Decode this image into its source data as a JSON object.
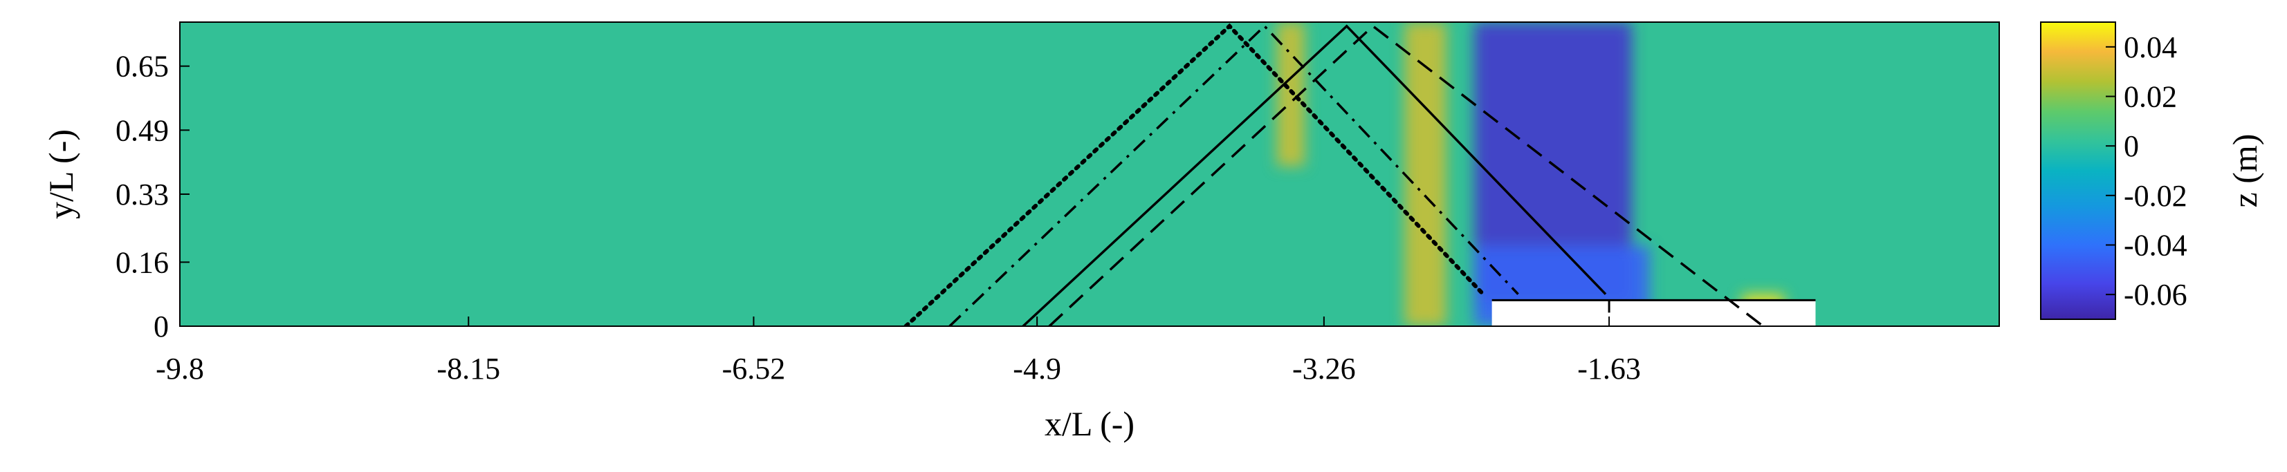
{
  "chart_data": {
    "type": "heatmap",
    "xlabel": "x/L (-)",
    "ylabel": "y/L (-)",
    "xlim": [
      -9.8,
      0.6
    ],
    "ylim": [
      0,
      0.76
    ],
    "xticks": [
      "-9.8",
      "-8.15",
      "-6.52",
      "-4.9",
      "-3.26",
      "-1.63"
    ],
    "xtick_values": [
      -9.8,
      -8.15,
      -6.52,
      -4.9,
      -3.26,
      -1.63
    ],
    "yticks": [
      "0",
      "0.16",
      "0.33",
      "0.49",
      "0.65"
    ],
    "ytick_values": [
      0,
      0.16,
      0.33,
      0.49,
      0.65
    ],
    "colorbar": {
      "label": "z (m)",
      "ticks": [
        "0.04",
        "0.02",
        "0",
        "-0.02",
        "-0.04",
        "-0.06"
      ],
      "tick_values": [
        0.04,
        0.02,
        0,
        -0.02,
        -0.04,
        -0.06
      ],
      "range": [
        -0.07,
        0.05
      ],
      "colormap": "parula"
    },
    "structure": {
      "x": [
        -2.3,
        -0.45
      ],
      "y": [
        0,
        0.065
      ],
      "center_x": -1.63
    },
    "wave_rays": [
      {
        "style": "dotted",
        "points": [
          [
            -5.65,
            0
          ],
          [
            -3.8,
            0.75
          ],
          [
            -2.35,
            0.08
          ]
        ]
      },
      {
        "style": "dashdot",
        "points": [
          [
            -5.4,
            0
          ],
          [
            -3.6,
            0.75
          ],
          [
            -2.15,
            0.08
          ]
        ]
      },
      {
        "style": "solid",
        "points": [
          [
            -4.98,
            0
          ],
          [
            -3.13,
            0.75
          ],
          [
            -1.65,
            0.08
          ]
        ]
      },
      {
        "style": "dashed",
        "points": [
          [
            -4.83,
            0
          ],
          [
            -2.98,
            0.75
          ],
          [
            -0.75,
            0
          ]
        ]
      }
    ],
    "field_features": [
      {
        "name": "trough",
        "x_center": -1.95,
        "x_halfwidth": 0.45,
        "y_min": 0.06,
        "y_max": 0.76,
        "z": -0.062
      },
      {
        "name": "crest",
        "x_center": -2.68,
        "x_halfwidth": 0.12,
        "y_min": 0.0,
        "y_max": 0.76,
        "z": 0.03
      },
      {
        "name": "crest",
        "x_center": -3.45,
        "x_halfwidth": 0.08,
        "y_min": 0.4,
        "y_max": 0.76,
        "z": 0.03
      },
      {
        "name": "crest",
        "x_center": -0.75,
        "x_halfwidth": 0.12,
        "y_min": 0.0,
        "y_max": 0.08,
        "z": 0.045
      },
      {
        "name": "trough",
        "x_center": -1.9,
        "x_halfwidth": 0.5,
        "y_min": 0.0,
        "y_max": 0.2,
        "z": -0.045
      }
    ]
  }
}
